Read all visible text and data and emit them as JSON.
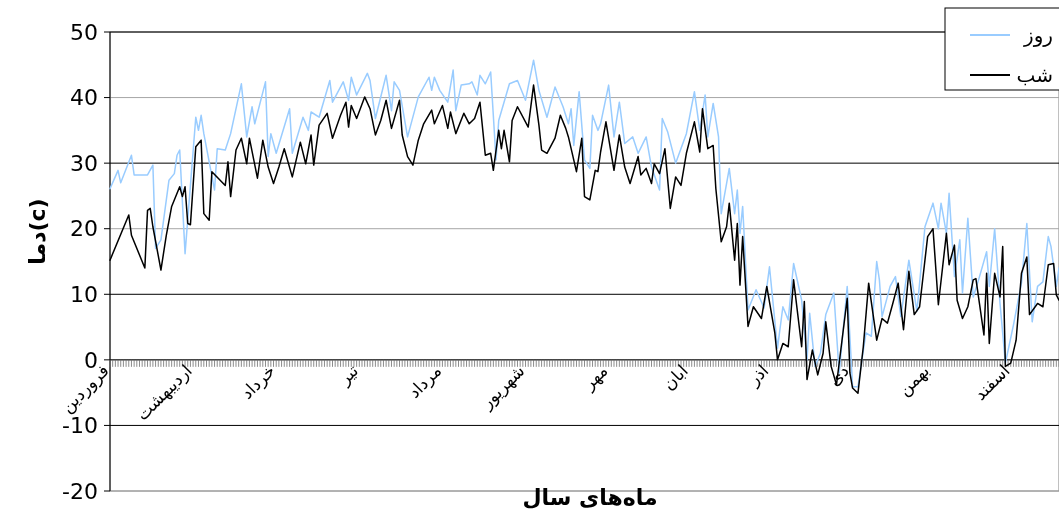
{
  "chart_data": {
    "type": "line",
    "xlabel": "ماه‌های سال",
    "ylabel": "دما(c)",
    "ylim": [
      -20,
      50
    ],
    "yticks": [
      -20,
      -10,
      0,
      10,
      20,
      30,
      40,
      50
    ],
    "grid": "y",
    "legend": "top right",
    "marker": "none",
    "line_style": "solid",
    "categories": [
      "فروردین",
      null,
      null,
      null,
      null,
      null,
      null,
      null,
      null,
      null,
      null,
      null,
      null,
      null,
      null,
      null,
      null,
      null,
      null,
      null,
      null,
      null,
      null,
      null,
      null,
      null,
      null,
      null,
      null,
      null,
      null,
      "اردیبهشت",
      null,
      null,
      null,
      null,
      null,
      null,
      null,
      null,
      null,
      null,
      null,
      null,
      null,
      null,
      null,
      null,
      null,
      null,
      null,
      null,
      null,
      null,
      null,
      null,
      null,
      null,
      null,
      null,
      null,
      null,
      "خرداد",
      null,
      null,
      null,
      null,
      null,
      null,
      null,
      null,
      null,
      null,
      null,
      null,
      null,
      null,
      null,
      null,
      null,
      null,
      null,
      null,
      null,
      null,
      null,
      null,
      null,
      null,
      null,
      null,
      null,
      null,
      "تیر",
      null,
      null,
      null,
      null,
      null,
      null,
      null,
      null,
      null,
      null,
      null,
      null,
      null,
      null,
      null,
      null,
      null,
      null,
      null,
      null,
      null,
      null,
      null,
      null,
      null,
      null,
      null,
      null,
      null,
      null,
      "مرداد",
      null,
      null,
      null,
      null,
      null,
      null,
      null,
      null,
      null,
      null,
      null,
      null,
      null,
      null,
      null,
      null,
      null,
      null,
      null,
      null,
      null,
      null,
      null,
      null,
      null,
      null,
      null,
      null,
      null,
      null,
      "شهریور",
      null,
      null,
      null,
      null,
      null,
      null,
      null,
      null,
      null,
      null,
      null,
      null,
      null,
      null,
      null,
      null,
      null,
      null,
      null,
      null,
      null,
      null,
      null,
      null,
      null,
      null,
      null,
      null,
      null,
      null,
      "مهر",
      null,
      null,
      null,
      null,
      null,
      null,
      null,
      null,
      null,
      null,
      null,
      null,
      null,
      null,
      null,
      null,
      null,
      null,
      null,
      null,
      null,
      null,
      null,
      null,
      null,
      null,
      null,
      null,
      null,
      "ابان",
      null,
      null,
      null,
      null,
      null,
      null,
      null,
      null,
      null,
      null,
      null,
      null,
      null,
      null,
      null,
      null,
      null,
      null,
      null,
      null,
      null,
      null,
      null,
      null,
      null,
      null,
      null,
      null,
      null,
      "اذر",
      null,
      null,
      null,
      null,
      null,
      null,
      null,
      null,
      null,
      null,
      null,
      null,
      null,
      null,
      null,
      null,
      null,
      null,
      null,
      null,
      null,
      null,
      null,
      null,
      null,
      null,
      null,
      null,
      null,
      "دی",
      null,
      null,
      null,
      null,
      null,
      null,
      null,
      null,
      null,
      null,
      null,
      null,
      null,
      null,
      null,
      null,
      null,
      null,
      null,
      null,
      null,
      null,
      null,
      null,
      null,
      null,
      null,
      null,
      null,
      "بهمن",
      null,
      null,
      null,
      null,
      null,
      null,
      null,
      null,
      null,
      null,
      null,
      null,
      null,
      null,
      null,
      null,
      null,
      null,
      null,
      null,
      null,
      null,
      null,
      null,
      null,
      null,
      null,
      null,
      null,
      "اسفند",
      null,
      null,
      null,
      null,
      null,
      null,
      null,
      null,
      null,
      null,
      null,
      null,
      null,
      null,
      null,
      null,
      null,
      null
    ],
    "series": [
      {
        "name": "روز",
        "color": "#99ccff",
        "values": [
          26.1,
          null,
          null,
          28.9,
          27,
          null,
          null,
          null,
          31.2,
          28.2,
          null,
          null,
          null,
          null,
          28.2,
          null,
          29.7,
          17,
          null,
          18.3,
          null,
          null,
          27.4,
          null,
          28.4,
          31.2,
          32,
          null,
          16.2,
          null,
          null,
          null,
          37,
          35,
          37.3,
          34.5,
          null,
          null,
          null,
          25.9,
          32.2,
          null,
          null,
          32,
          null,
          34.5,
          null,
          null,
          null,
          42.1,
          null,
          34,
          null,
          38.6,
          36,
          null,
          null,
          null,
          42.4,
          31,
          34.5,
          null,
          31.5,
          null,
          null,
          null,
          null,
          38.3,
          31.5,
          null,
          null,
          null,
          37,
          null,
          35,
          37.8,
          null,
          null,
          37,
          null,
          null,
          null,
          42.6,
          39.3,
          null,
          null,
          null,
          42.4,
          null,
          39.6,
          43.1,
          null,
          40.4,
          null,
          null,
          null,
          43.7,
          42.6,
          null,
          36.8,
          null,
          null,
          null,
          43.4,
          null,
          38,
          42.4,
          null,
          41.1,
          null,
          null,
          34,
          null,
          null,
          null,
          40.1,
          null,
          null,
          null,
          43.1,
          41.1,
          43.1,
          null,
          41.1,
          null,
          null,
          39.3,
          null,
          44.2,
          38,
          null,
          41.9,
          null,
          null,
          42.1,
          42.4,
          null,
          40.4,
          43.4,
          null,
          42.1,
          null,
          43.9,
          null,
          30.5,
          36.5,
          null,
          null,
          null,
          42.1,
          null,
          null,
          42.6,
          null,
          null,
          39.6,
          null,
          null,
          45.7,
          null,
          41.1,
          null,
          null,
          37,
          null,
          null,
          41.6,
          null,
          null,
          38.6,
          null,
          36,
          38.3,
          32.7,
          null,
          40.9,
          null,
          30.5,
          null,
          29.2,
          37.3,
          null,
          35,
          36,
          null,
          null,
          41.9,
          null,
          34,
          null,
          39.3,
          null,
          33,
          null,
          null,
          34,
          null,
          31.5,
          null,
          null,
          34,
          null,
          29.4,
          null,
          null,
          25.9,
          36.8,
          null,
          34.8,
          null,
          null,
          30,
          null,
          null,
          null,
          34.5,
          null,
          null,
          40.9,
          null,
          35,
          null,
          40.4,
          34,
          null,
          39.1,
          null,
          34,
          22.3,
          null,
          null,
          29.2,
          null,
          22.3,
          25.9,
          19.3,
          23.4,
          null,
          7.6,
          null,
          null,
          10.7,
          null,
          null,
          7.9,
          null,
          14.2,
          null,
          null,
          1.8,
          null,
          8.1,
          null,
          6.1,
          null,
          14.7,
          null,
          null,
          9.1,
          null,
          0,
          7.1,
          null,
          -1,
          null,
          1,
          null,
          6.9,
          null,
          null,
          10.2,
          null,
          -2,
          null,
          null,
          11.2,
          null,
          -4.1,
          null,
          -4.1,
          null,
          null,
          4.1,
          null,
          3.6,
          null,
          15,
          12.2,
          6.6,
          null,
          null,
          11.2,
          null,
          12.7,
          null,
          6.6,
          null,
          null,
          15.2,
          null,
          null,
          7.4,
          null,
          null,
          20.3,
          null,
          null,
          23.9,
          null,
          20,
          23.9,
          null,
          19.3,
          25.4,
          null,
          12.7,
          null,
          18.3,
          10.2,
          null,
          21.6,
          null,
          9.6,
          null,
          12.2,
          null,
          null,
          16.5,
          11.2,
          null,
          20,
          null,
          8.6,
          null,
          -0.5,
          null,
          null,
          5.3,
          null,
          null,
          11.7,
          null,
          20.8,
          null,
          5.8,
          null,
          11.2,
          null,
          11.9,
          null,
          18.8,
          17.3,
          null,
          11.2,
          14
        ]
      },
      {
        "name": "شب",
        "color": "#000000",
        "values": [
          15.2,
          null,
          null,
          null,
          null,
          null,
          null,
          22.1,
          19,
          null,
          null,
          null,
          null,
          14,
          22.8,
          23.1,
          20.3,
          null,
          null,
          13.7,
          null,
          19,
          null,
          23.4,
          null,
          null,
          26.4,
          24.9,
          26.4,
          20.8,
          20.6,
          null,
          32.5,
          null,
          33.5,
          22.3,
          null,
          21.3,
          28.7,
          null,
          null,
          null,
          null,
          26.6,
          30.2,
          24.9,
          null,
          32,
          null,
          33.8,
          null,
          29.9,
          33.8,
          null,
          null,
          27.7,
          null,
          33.5,
          null,
          29.4,
          null,
          26.9,
          null,
          29.4,
          null,
          32.2,
          null,
          null,
          27.9,
          null,
          null,
          33.2,
          null,
          29.9,
          null,
          34.3,
          29.7,
          null,
          35.8,
          null,
          null,
          37.6,
          null,
          33.8,
          null,
          null,
          37.3,
          null,
          39.3,
          35.5,
          38.8,
          null,
          36.8,
          null,
          null,
          40.1,
          null,
          38.3,
          null,
          34.3,
          null,
          36.5,
          null,
          39.6,
          null,
          35.3,
          null,
          null,
          39.6,
          34.3,
          null,
          31,
          null,
          29.7,
          null,
          33.5,
          null,
          36,
          null,
          null,
          38.1,
          36,
          null,
          null,
          38.8,
          null,
          35.3,
          37.8,
          null,
          34.5,
          null,
          null,
          37.6,
          null,
          36,
          null,
          36.8,
          null,
          39.3,
          null,
          31.2,
          null,
          31.5,
          28.9,
          null,
          35,
          32.2,
          35,
          null,
          30.2,
          36.5,
          null,
          38.6,
          null,
          null,
          null,
          35.5,
          null,
          41.9,
          null,
          35.8,
          32,
          null,
          31.5,
          null,
          null,
          33.8,
          null,
          37.3,
          null,
          35.3,
          34,
          null,
          null,
          28.7,
          null,
          33.8,
          24.9,
          null,
          24.4,
          null,
          28.9,
          28.7,
          31.7,
          null,
          36.3,
          null,
          null,
          28.9,
          null,
          34.3,
          null,
          29.4,
          null,
          26.9,
          null,
          null,
          31,
          28.2,
          null,
          29.2,
          null,
          26.9,
          29.9,
          null,
          28.4,
          null,
          32.2,
          null,
          23.1,
          null,
          27.9,
          null,
          26.6,
          null,
          31.5,
          null,
          null,
          36.3,
          null,
          31.7,
          38.3,
          null,
          32.2,
          null,
          32.7,
          26.1,
          null,
          18,
          null,
          20.3,
          23.9,
          null,
          15.2,
          20.8,
          11.4,
          18.8,
          null,
          5.1,
          null,
          8.1,
          null,
          null,
          6.3,
          null,
          11.2,
          null,
          null,
          4.1,
          0,
          null,
          2.5,
          null,
          2,
          null,
          12.2,
          null,
          null,
          2,
          8.9,
          -3,
          null,
          1.5,
          null,
          -2.3,
          null,
          1,
          5.8,
          null,
          -1,
          null,
          -3.8,
          null,
          null,
          null,
          9.4,
          -2,
          -4.3,
          null,
          -5.1,
          null,
          2,
          null,
          11.7,
          null,
          null,
          3,
          null,
          6.3,
          null,
          5.6,
          null,
          8.6,
          null,
          11.7,
          null,
          4.6,
          null,
          13.5,
          null,
          6.9,
          null,
          8.1,
          null,
          null,
          18.8,
          null,
          20,
          null,
          8.4,
          null,
          null,
          19.3,
          14.5,
          null,
          17.5,
          9.1,
          null,
          6.3,
          null,
          8.1,
          null,
          12.2,
          12.4,
          null,
          null,
          3.8,
          13.2,
          2.5,
          null,
          13.2,
          null,
          9.6,
          17.3,
          -1,
          null,
          -0.5,
          null,
          3,
          null,
          13.2,
          null,
          15.7,
          6.9,
          null,
          null,
          8.6,
          null,
          8.1,
          null,
          14.5,
          null,
          14.7,
          9.9,
          9.1
        ]
      }
    ]
  }
}
